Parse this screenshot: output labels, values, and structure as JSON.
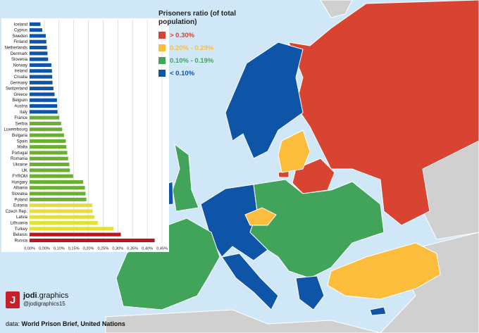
{
  "legend": {
    "title": "Prisoners ratio (of total population)",
    "items": [
      {
        "label": "> 0.30%",
        "color": "#d94332"
      },
      {
        "label": "0.20% - 0.29%",
        "color": "#fbbd3b"
      },
      {
        "label": "0.10% - 0.19%",
        "color": "#42a45a"
      },
      {
        "label": "< 0.10%",
        "color": "#0e55a8"
      }
    ]
  },
  "brand": {
    "logo_letter": "J",
    "name_bold": "jodi",
    "name_rest": ".graphics",
    "handle": "@jodigraphics15"
  },
  "source": {
    "prefix": "data: ",
    "text": "World Prison Brief, United Nations"
  },
  "chart_data": {
    "type": "bar",
    "orientation": "horizontal",
    "categories": [
      "Iceland",
      "Cyprus",
      "Sweden",
      "Finland",
      "Netherlands",
      "Denmark",
      "Slovenia",
      "Norway",
      "Ireland",
      "Croatia",
      "Germany",
      "Switzerland",
      "Greece",
      "Belgium",
      "Austria",
      "Italy",
      "France",
      "Serbia",
      "Luxembourg",
      "Bulgaria",
      "Spain",
      "Malta",
      "Portugal",
      "Romania",
      "Ukraine",
      "UK",
      "FYROM",
      "Hungary",
      "Albania",
      "Slovakia",
      "Poland",
      "Estonia",
      "Czech Rep.",
      "Latvia",
      "Lithuania",
      "Turkey",
      "Belarus",
      "Russia"
    ],
    "values": [
      0.037,
      0.043,
      0.055,
      0.057,
      0.059,
      0.061,
      0.063,
      0.074,
      0.076,
      0.077,
      0.078,
      0.081,
      0.085,
      0.093,
      0.094,
      0.095,
      0.101,
      0.107,
      0.111,
      0.117,
      0.123,
      0.125,
      0.128,
      0.131,
      0.135,
      0.137,
      0.148,
      0.182,
      0.188,
      0.19,
      0.193,
      0.213,
      0.214,
      0.22,
      0.232,
      0.285,
      0.31,
      0.425
    ],
    "colors": [
      "#0e55a8",
      "#0e55a8",
      "#0e55a8",
      "#0e55a8",
      "#0e55a8",
      "#0e55a8",
      "#0e55a8",
      "#0e55a8",
      "#0e55a8",
      "#0e55a8",
      "#0e55a8",
      "#0e55a8",
      "#0e55a8",
      "#0e55a8",
      "#0e55a8",
      "#0e55a8",
      "#6aae32",
      "#6aae32",
      "#6aae32",
      "#6aae32",
      "#6aae32",
      "#6aae32",
      "#6aae32",
      "#6aae32",
      "#6aae32",
      "#6aae32",
      "#6aae32",
      "#6aae32",
      "#6aae32",
      "#6aae32",
      "#6aae32",
      "#e6de3a",
      "#e6de3a",
      "#e6de3a",
      "#e6de3a",
      "#e6de3a",
      "#c1121f",
      "#c1121f"
    ],
    "xticks": [
      "0,00%",
      "0,00%",
      "0,10%",
      "0,15%",
      "0,20%",
      "0,25%",
      "0,30%",
      "0,35%",
      "0,40%",
      "0,45%"
    ],
    "xlim": [
      0,
      0.45
    ],
    "grid": true
  }
}
